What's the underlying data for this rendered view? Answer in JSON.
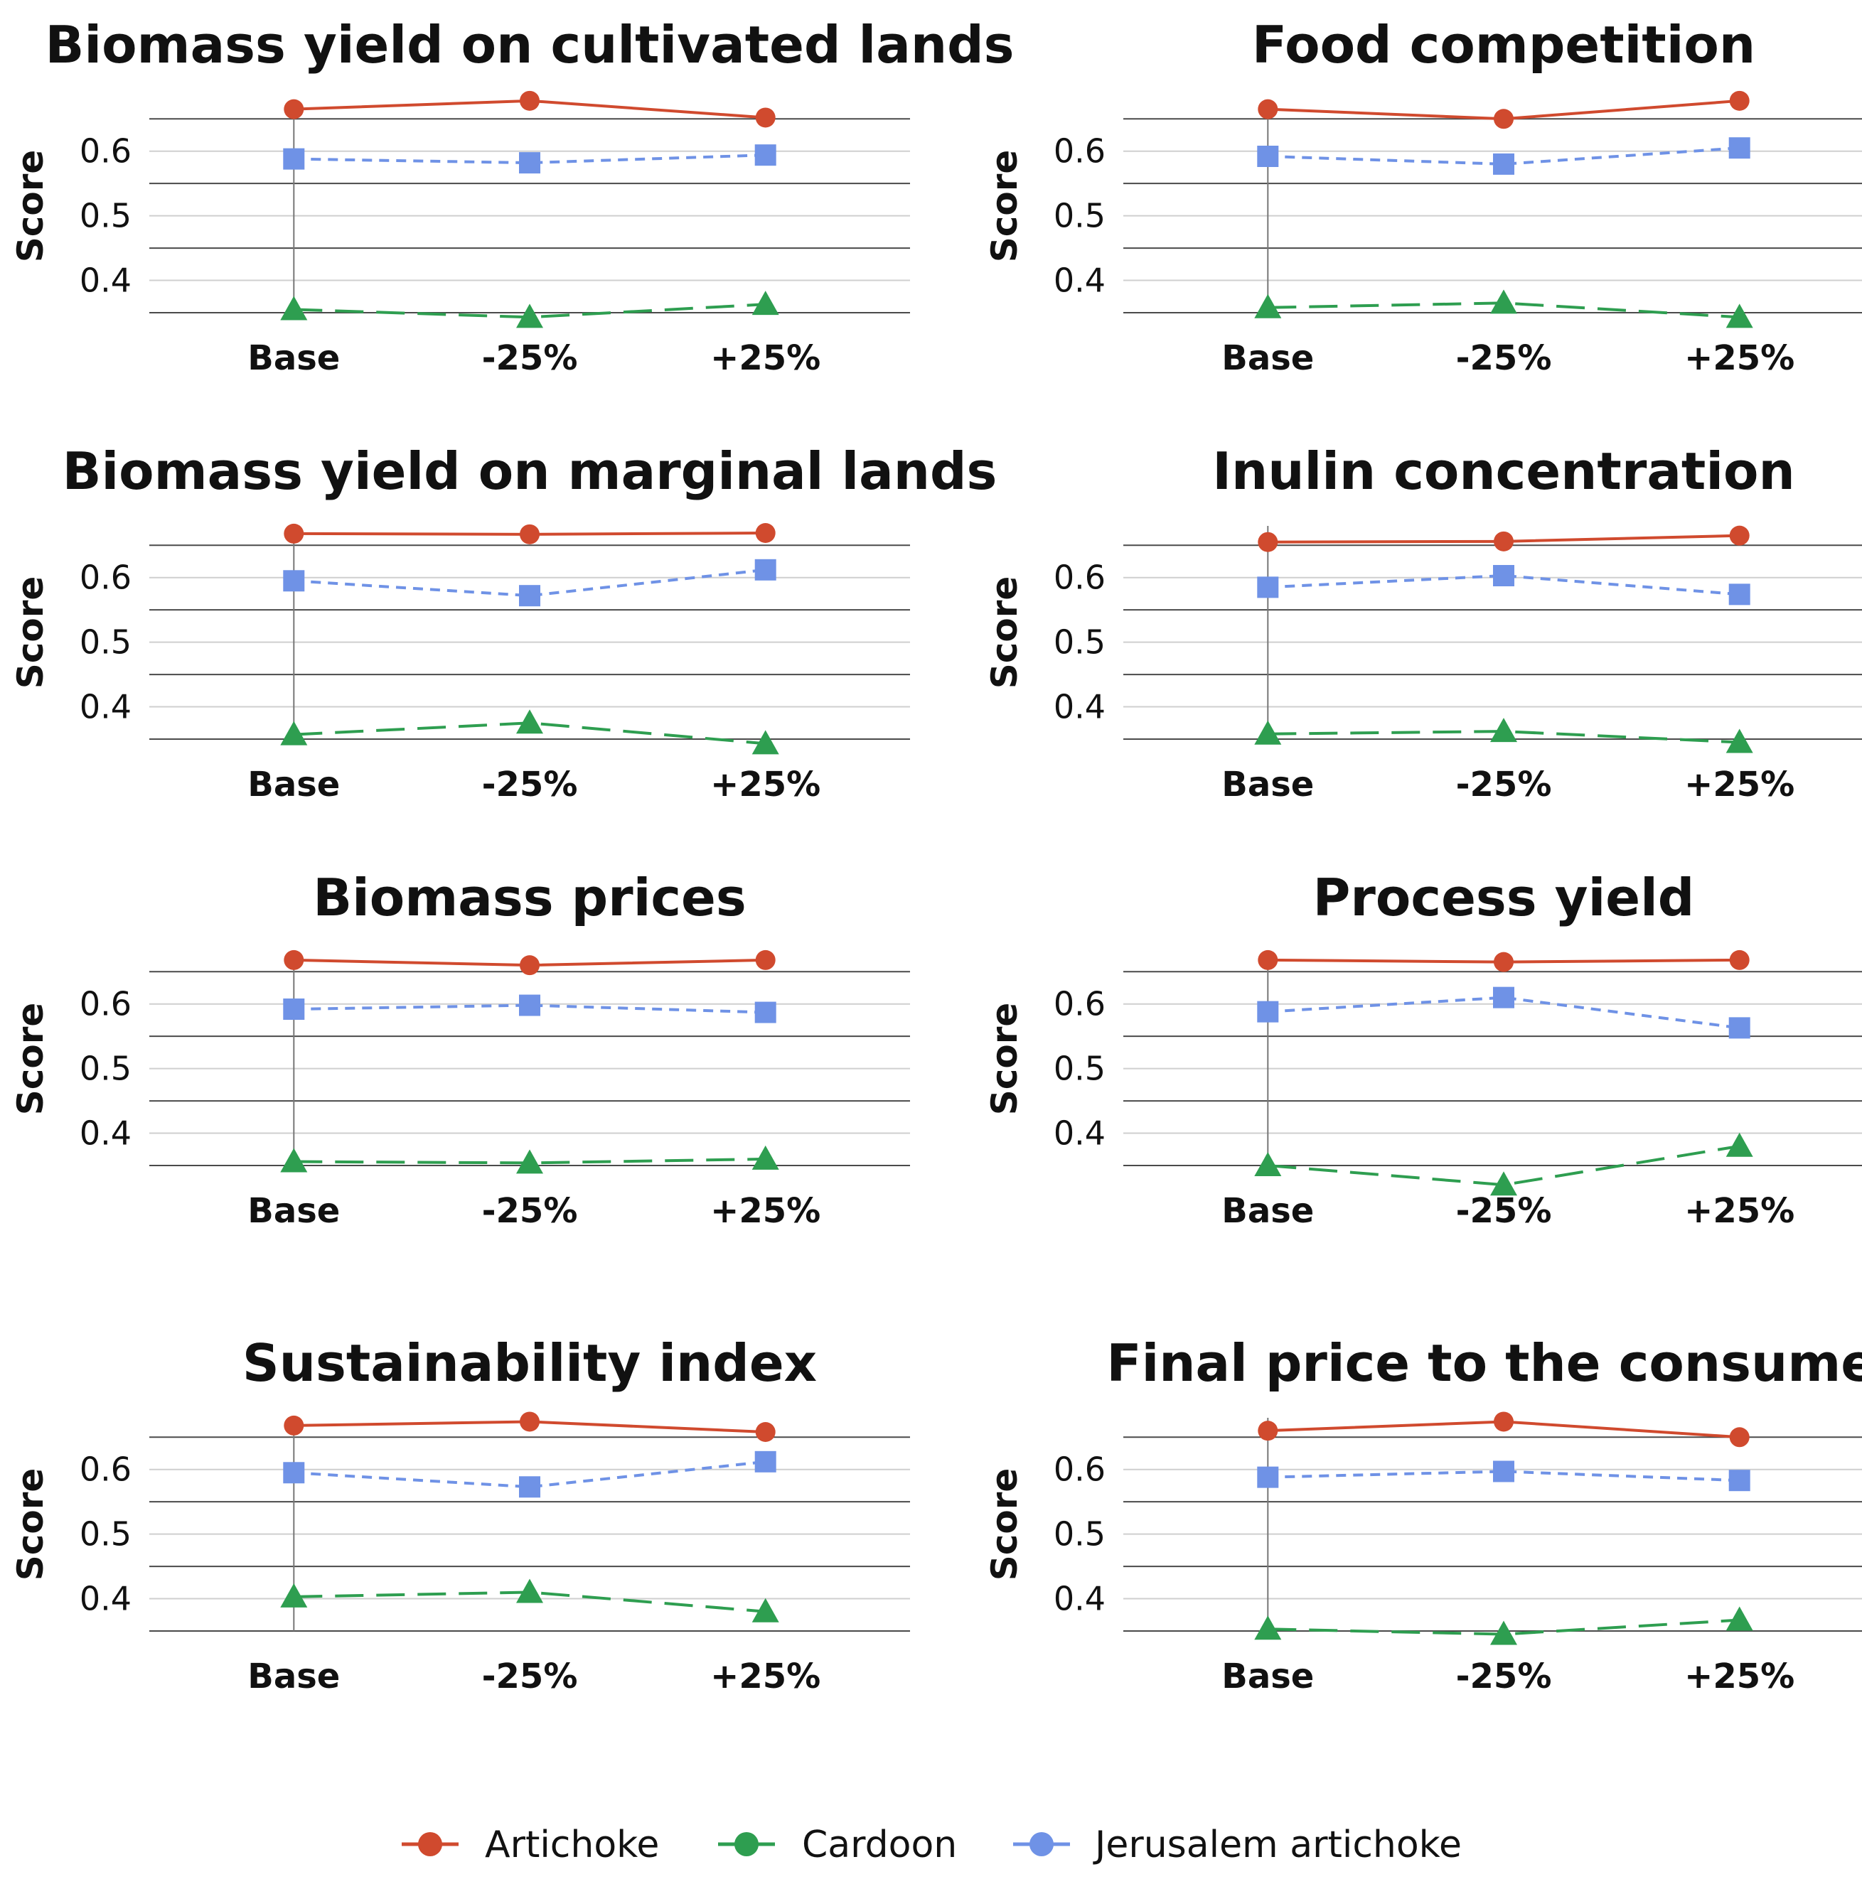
{
  "colors": {
    "artichoke": "#d04a2e",
    "cardoon": "#2e9e50",
    "jerusalem_artichoke": "#6f92e6",
    "gridline_light": "#cfcfcf",
    "gridline_dark": "#4a4a4a"
  },
  "legend": {
    "artichoke": "Artichoke",
    "cardoon": "Cardoon",
    "jerusalem_artichoke": "Jerusalem artichoke"
  },
  "chart_data": [
    {
      "type": "line",
      "title": "Biomass yield on cultivated lands",
      "ylabel": "Score",
      "categories": [
        "Base",
        "-25%",
        "+25%"
      ],
      "yticks": [
        "0.4",
        "0.5",
        "0.6"
      ],
      "ylim": [
        0.35,
        0.68
      ],
      "series": [
        {
          "name": "Artichoke",
          "values": [
            0.665,
            0.678,
            0.652
          ]
        },
        {
          "name": "Jerusalem artichoke",
          "values": [
            0.588,
            0.582,
            0.594
          ]
        },
        {
          "name": "Cardoon",
          "values": [
            0.355,
            0.343,
            0.363
          ]
        }
      ]
    },
    {
      "type": "line",
      "title": "Food competition",
      "ylabel": "Score",
      "categories": [
        "Base",
        "-25%",
        "+25%"
      ],
      "yticks": [
        "0.4",
        "0.5",
        "0.6"
      ],
      "ylim": [
        0.35,
        0.68
      ],
      "series": [
        {
          "name": "Artichoke",
          "values": [
            0.665,
            0.65,
            0.678
          ]
        },
        {
          "name": "Jerusalem artichoke",
          "values": [
            0.592,
            0.58,
            0.605
          ]
        },
        {
          "name": "Cardoon",
          "values": [
            0.358,
            0.365,
            0.343
          ]
        }
      ]
    },
    {
      "type": "line",
      "title": "Biomass yield on marginal lands",
      "ylabel": "Score",
      "categories": [
        "Base",
        "-25%",
        "+25%"
      ],
      "yticks": [
        "0.4",
        "0.5",
        "0.6"
      ],
      "ylim": [
        0.35,
        0.68
      ],
      "series": [
        {
          "name": "Artichoke",
          "values": [
            0.668,
            0.667,
            0.669
          ]
        },
        {
          "name": "Jerusalem artichoke",
          "values": [
            0.595,
            0.572,
            0.612
          ]
        },
        {
          "name": "Cardoon",
          "values": [
            0.357,
            0.375,
            0.343
          ]
        }
      ]
    },
    {
      "type": "line",
      "title": "Inulin concentration",
      "ylabel": "Score",
      "categories": [
        "Base",
        "-25%",
        "+25%"
      ],
      "yticks": [
        "0.4",
        "0.5",
        "0.6"
      ],
      "ylim": [
        0.35,
        0.68
      ],
      "series": [
        {
          "name": "Artichoke",
          "values": [
            0.655,
            0.656,
            0.665
          ]
        },
        {
          "name": "Jerusalem artichoke",
          "values": [
            0.585,
            0.603,
            0.574
          ]
        },
        {
          "name": "Cardoon",
          "values": [
            0.358,
            0.362,
            0.345
          ]
        }
      ]
    },
    {
      "type": "line",
      "title": "Biomass prices",
      "ylabel": "Score",
      "categories": [
        "Base",
        "-25%",
        "+25%"
      ],
      "yticks": [
        "0.4",
        "0.5",
        "0.6"
      ],
      "ylim": [
        0.35,
        0.68
      ],
      "series": [
        {
          "name": "Artichoke",
          "values": [
            0.668,
            0.66,
            0.668
          ]
        },
        {
          "name": "Jerusalem artichoke",
          "values": [
            0.592,
            0.598,
            0.587
          ]
        },
        {
          "name": "Cardoon",
          "values": [
            0.356,
            0.354,
            0.36
          ]
        }
      ]
    },
    {
      "type": "line",
      "title": "Process yield",
      "ylabel": "Score",
      "categories": [
        "Base",
        "-25%",
        "+25%"
      ],
      "yticks": [
        "0.4",
        "0.5",
        "0.6"
      ],
      "ylim": [
        0.35,
        0.68
      ],
      "series": [
        {
          "name": "Artichoke",
          "values": [
            0.668,
            0.665,
            0.668
          ]
        },
        {
          "name": "Jerusalem artichoke",
          "values": [
            0.588,
            0.61,
            0.563
          ]
        },
        {
          "name": "Cardoon",
          "values": [
            0.35,
            0.32,
            0.38
          ]
        }
      ]
    },
    {
      "type": "line",
      "title": "Sustainability index",
      "ylabel": "Score",
      "categories": [
        "Base",
        "-25%",
        "+25%"
      ],
      "yticks": [
        "0.4",
        "0.5",
        "0.6"
      ],
      "ylim": [
        0.35,
        0.68
      ],
      "series": [
        {
          "name": "Artichoke",
          "values": [
            0.668,
            0.674,
            0.658
          ]
        },
        {
          "name": "Jerusalem artichoke",
          "values": [
            0.595,
            0.573,
            0.612
          ]
        },
        {
          "name": "Cardoon",
          "values": [
            0.403,
            0.41,
            0.38
          ]
        }
      ]
    },
    {
      "type": "line",
      "title": "Final price to the consumer",
      "ylabel": "Score",
      "categories": [
        "Base",
        "-25%",
        "+25%"
      ],
      "yticks": [
        "0.4",
        "0.5",
        "0.6"
      ],
      "ylim": [
        0.35,
        0.68
      ],
      "series": [
        {
          "name": "Artichoke",
          "values": [
            0.66,
            0.674,
            0.65
          ]
        },
        {
          "name": "Jerusalem artichoke",
          "values": [
            0.588,
            0.597,
            0.583
          ]
        },
        {
          "name": "Cardoon",
          "values": [
            0.353,
            0.345,
            0.367
          ]
        }
      ]
    }
  ]
}
